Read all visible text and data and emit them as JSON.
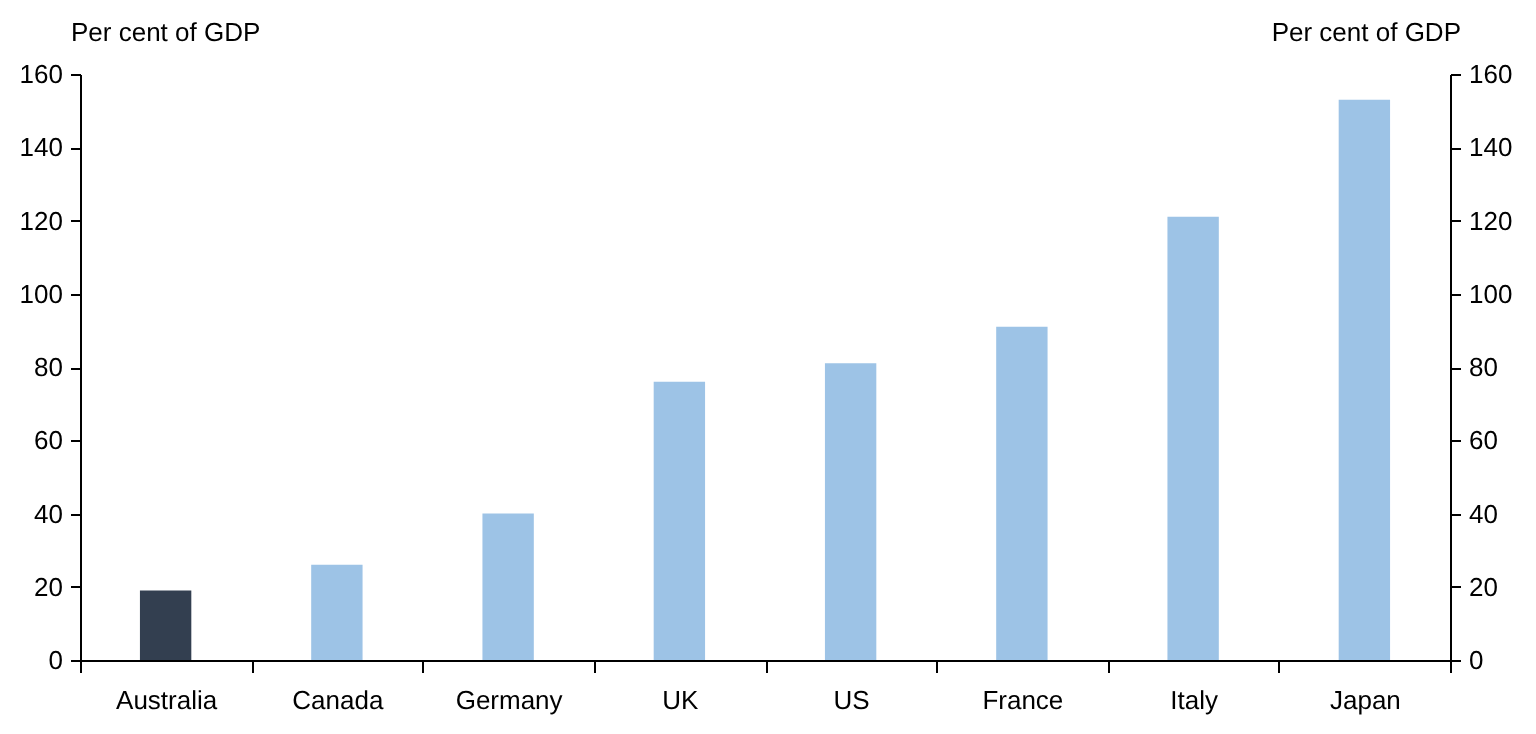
{
  "chart_data": {
    "type": "bar",
    "ylabel": "Per cent of GDP",
    "y2label": "Per cent of GDP",
    "categories": [
      "Australia",
      "Canada",
      "Germany",
      "UK",
      "US",
      "France",
      "Italy",
      "Japan"
    ],
    "values": [
      19,
      26,
      40,
      76,
      81,
      91,
      121,
      153
    ],
    "colors": [
      "#333f50",
      "#9dc3e6",
      "#9dc3e6",
      "#9dc3e6",
      "#9dc3e6",
      "#9dc3e6",
      "#9dc3e6",
      "#9dc3e6"
    ],
    "ylim": [
      0,
      160
    ],
    "yticks": [
      0,
      20,
      40,
      60,
      80,
      100,
      120,
      140,
      160
    ],
    "y2lim": [
      0,
      160
    ],
    "y2ticks": [
      0,
      20,
      40,
      60,
      80,
      100,
      120,
      140,
      160
    ],
    "grid": false
  }
}
